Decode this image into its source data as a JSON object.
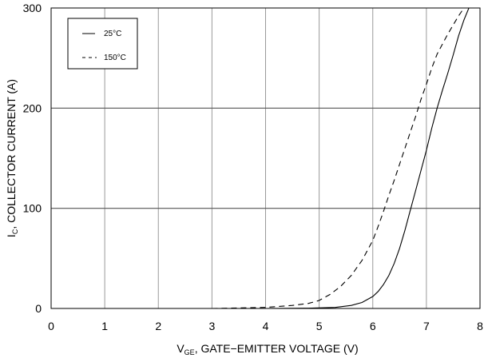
{
  "chart_data": {
    "type": "line",
    "xlabel": {
      "main": "V",
      "sub": "GE",
      "rest": ", GATE−EMITTER VOLTAGE (V)"
    },
    "ylabel": {
      "main": "I",
      "sub": "C",
      "rest": ", COLLECTOR CURRENT (A)"
    },
    "xlim": [
      0,
      8
    ],
    "ylim": [
      0,
      300
    ],
    "xticks": [
      "0",
      "1",
      "2",
      "3",
      "4",
      "5",
      "6",
      "7",
      "8"
    ],
    "yticks": [
      "0",
      "100",
      "200",
      "300"
    ],
    "grid": true,
    "legend_position": "top-left",
    "series": [
      {
        "name": "25°C",
        "style": "solid",
        "x": [
          0.5,
          4.0,
          4.8,
          5.3,
          5.6,
          5.8,
          6.0,
          6.1,
          6.2,
          6.3,
          6.4,
          6.5,
          6.6,
          6.7,
          6.8,
          6.9,
          7.0,
          7.1,
          7.2,
          7.3,
          7.4,
          7.5,
          7.6,
          7.7,
          7.8
        ],
        "y": [
          0,
          0,
          0.2,
          1,
          3,
          6,
          12,
          17,
          24,
          33,
          45,
          60,
          78,
          98,
          118,
          138,
          158,
          180,
          200,
          218,
          235,
          253,
          272,
          288,
          301
        ]
      },
      {
        "name": "150°C",
        "style": "dashed",
        "x": [
          3.0,
          4.0,
          4.5,
          4.8,
          5.0,
          5.2,
          5.4,
          5.6,
          5.8,
          6.0,
          6.1,
          6.2,
          6.3,
          6.4,
          6.5,
          6.6,
          6.7,
          6.8,
          6.9,
          7.0,
          7.1,
          7.2,
          7.3,
          7.4,
          7.5,
          7.6,
          7.7,
          7.75
        ],
        "y": [
          0,
          1,
          3,
          5,
          8,
          14,
          22,
          33,
          48,
          68,
          82,
          97,
          113,
          128,
          144,
          160,
          176,
          192,
          209,
          224,
          240,
          254,
          264,
          274,
          283,
          292,
          300,
          303
        ]
      }
    ]
  }
}
